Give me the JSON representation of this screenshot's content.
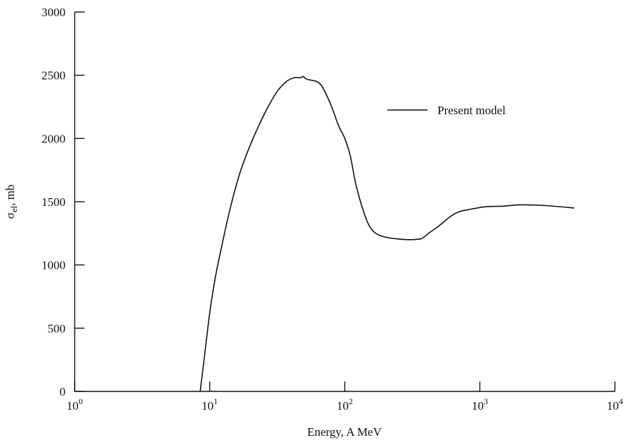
{
  "chart_data": {
    "type": "line",
    "title": "",
    "xlabel": "Energy, A MeV",
    "ylabel": {
      "main": "σ",
      "sub": "el",
      "rest": ", mb"
    },
    "x_scale": "log",
    "xlim": [
      1,
      10000
    ],
    "ylim": [
      0,
      3000
    ],
    "grid": false,
    "x_ticks": [
      {
        "value": 1,
        "base": "10",
        "exp": "0"
      },
      {
        "value": 10,
        "base": "10",
        "exp": "1"
      },
      {
        "value": 100,
        "base": "10",
        "exp": "2"
      },
      {
        "value": 1000,
        "base": "10",
        "exp": "3"
      },
      {
        "value": 10000,
        "base": "10",
        "exp": "4"
      }
    ],
    "y_ticks": [
      0,
      500,
      1000,
      1500,
      2000,
      2500,
      3000
    ],
    "legend": {
      "position": "top-right"
    },
    "series": [
      {
        "name": "Present model",
        "color": "#111111",
        "points": [
          [
            8.5,
            0
          ],
          [
            9.2,
            300
          ],
          [
            10,
            620
          ],
          [
            11,
            900
          ],
          [
            12,
            1100
          ],
          [
            13.5,
            1350
          ],
          [
            15,
            1550
          ],
          [
            17,
            1750
          ],
          [
            20,
            1950
          ],
          [
            24,
            2140
          ],
          [
            28,
            2280
          ],
          [
            32,
            2380
          ],
          [
            37,
            2450
          ],
          [
            42,
            2480
          ],
          [
            47,
            2480
          ],
          [
            49,
            2490
          ],
          [
            52,
            2470
          ],
          [
            57,
            2460
          ],
          [
            62,
            2450
          ],
          [
            67,
            2420
          ],
          [
            72,
            2360
          ],
          [
            80,
            2250
          ],
          [
            90,
            2100
          ],
          [
            100,
            2000
          ],
          [
            110,
            1860
          ],
          [
            120,
            1650
          ],
          [
            135,
            1450
          ],
          [
            150,
            1320
          ],
          [
            165,
            1260
          ],
          [
            185,
            1230
          ],
          [
            210,
            1215
          ],
          [
            250,
            1205
          ],
          [
            300,
            1200
          ],
          [
            360,
            1205
          ],
          [
            380,
            1215
          ],
          [
            430,
            1260
          ],
          [
            500,
            1310
          ],
          [
            600,
            1380
          ],
          [
            700,
            1420
          ],
          [
            850,
            1440
          ],
          [
            1100,
            1460
          ],
          [
            1500,
            1465
          ],
          [
            2000,
            1475
          ],
          [
            3000,
            1470
          ],
          [
            5000,
            1450
          ]
        ]
      }
    ]
  }
}
